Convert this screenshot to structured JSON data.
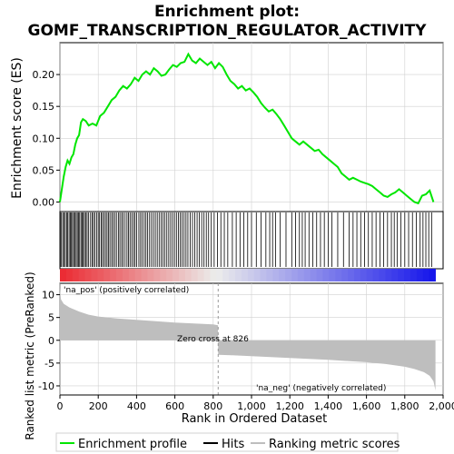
{
  "title_line1": "Enrichment plot:",
  "title_line2": "GOMF_TRANSCRIPTION_REGULATOR_ACTIVITY",
  "colors": {
    "es_line": "#00e600",
    "hits": "#000000",
    "metric_fill": "#bebebe",
    "pos_label": "#cc0000",
    "neg_label": "#0000cc",
    "grid": "#d0d0d0"
  },
  "chart_data": {
    "type": "line",
    "title": "Enrichment plot: GOMF_TRANSCRIPTION_REGULATOR_ACTIVITY",
    "xlabel": "Rank in Ordered Dataset",
    "x_ticks": [
      "0",
      "200",
      "400",
      "600",
      "800",
      "1,000",
      "1,200",
      "1,400",
      "1,600",
      "1,800",
      "2,000"
    ],
    "xlim": [
      0,
      2000
    ],
    "top_panel": {
      "ylabel": "Enrichment score (ES)",
      "y_ticks": [
        "0.00",
        "0.05",
        "0.10",
        "0.15",
        "0.20"
      ],
      "ylim": [
        -0.015,
        0.25
      ],
      "series": [
        {
          "name": "Enrichment profile",
          "x": [
            0,
            10,
            20,
            30,
            40,
            50,
            60,
            70,
            80,
            90,
            100,
            110,
            120,
            135,
            150,
            170,
            190,
            210,
            230,
            250,
            270,
            290,
            310,
            330,
            350,
            370,
            390,
            410,
            430,
            450,
            470,
            490,
            510,
            530,
            550,
            570,
            590,
            610,
            630,
            650,
            670,
            690,
            710,
            730,
            750,
            770,
            790,
            810,
            830,
            850,
            870,
            890,
            910,
            930,
            950,
            970,
            990,
            1010,
            1030,
            1050,
            1070,
            1090,
            1110,
            1130,
            1150,
            1170,
            1190,
            1210,
            1230,
            1250,
            1270,
            1290,
            1310,
            1330,
            1350,
            1370,
            1390,
            1410,
            1430,
            1450,
            1470,
            1490,
            1510,
            1530,
            1550,
            1570,
            1590,
            1610,
            1630,
            1650,
            1670,
            1690,
            1710,
            1730,
            1750,
            1770,
            1790,
            1810,
            1830,
            1850,
            1870,
            1890,
            1910,
            1930,
            1950
          ],
          "y": [
            0.0,
            0.02,
            0.04,
            0.055,
            0.065,
            0.06,
            0.07,
            0.075,
            0.09,
            0.1,
            0.105,
            0.125,
            0.13,
            0.127,
            0.12,
            0.123,
            0.12,
            0.135,
            0.14,
            0.15,
            0.16,
            0.165,
            0.175,
            0.182,
            0.178,
            0.185,
            0.195,
            0.19,
            0.2,
            0.205,
            0.2,
            0.21,
            0.205,
            0.198,
            0.2,
            0.208,
            0.215,
            0.212,
            0.218,
            0.22,
            0.232,
            0.222,
            0.218,
            0.225,
            0.22,
            0.215,
            0.22,
            0.21,
            0.218,
            0.212,
            0.2,
            0.19,
            0.185,
            0.178,
            0.182,
            0.175,
            0.178,
            0.172,
            0.165,
            0.155,
            0.148,
            0.142,
            0.145,
            0.138,
            0.13,
            0.12,
            0.11,
            0.1,
            0.095,
            0.09,
            0.095,
            0.09,
            0.085,
            0.08,
            0.082,
            0.075,
            0.07,
            0.065,
            0.06,
            0.055,
            0.045,
            0.04,
            0.035,
            0.038,
            0.035,
            0.032,
            0.03,
            0.028,
            0.025,
            0.02,
            0.015,
            0.01,
            0.008,
            0.012,
            0.015,
            0.02,
            0.015,
            0.01,
            0.005,
            0.0,
            -0.002,
            0.01,
            0.012,
            0.018,
            0.0
          ]
        }
      ]
    },
    "hits_panel": {
      "legend_label": "Hits",
      "hit_ranks": [
        2,
        8,
        15,
        22,
        28,
        35,
        41,
        48,
        55,
        60,
        66,
        72,
        78,
        85,
        91,
        97,
        103,
        110,
        116,
        122,
        128,
        135,
        142,
        150,
        160,
        168,
        175,
        183,
        192,
        200,
        207,
        215,
        222,
        230,
        238,
        246,
        253,
        261,
        270,
        278,
        286,
        295,
        305,
        313,
        322,
        330,
        340,
        350,
        358,
        366,
        375,
        384,
        392,
        401,
        412,
        421,
        430,
        440,
        449,
        458,
        468,
        478,
        488,
        498,
        508,
        518,
        528,
        538,
        548,
        558,
        568,
        578,
        588,
        598,
        608,
        618,
        628,
        638,
        648,
        658,
        668,
        680,
        692,
        704,
        716,
        728,
        740,
        752,
        764,
        776,
        790,
        805,
        822,
        840,
        858,
        876,
        900,
        920,
        940,
        960,
        980,
        1000,
        1025,
        1050,
        1075,
        1095,
        1110,
        1125,
        1150,
        1180,
        1210,
        1230,
        1250,
        1265,
        1280,
        1300,
        1320,
        1340,
        1360,
        1380,
        1400,
        1420,
        1450,
        1480,
        1510,
        1530,
        1550,
        1570,
        1590,
        1610,
        1630,
        1650,
        1670,
        1690,
        1710,
        1730,
        1745,
        1760,
        1780,
        1800,
        1820,
        1840,
        1860,
        1880,
        1895,
        1910,
        1925,
        1940
      ]
    },
    "metric_panel": {
      "ylabel": "Ranked list metric (PreRanked)",
      "y_ticks": [
        "10",
        "5",
        "0",
        "-5",
        "-10"
      ],
      "ylim": [
        -12,
        12.5
      ],
      "pos_label": "'na_pos' (positively correlated)",
      "neg_label": "'na_neg' (negatively correlated)",
      "zero_cross_label": "Zero cross at 826",
      "zero_cross": 826,
      "n_genes": 1960,
      "metric_x": [
        0,
        5,
        20,
        50,
        100,
        150,
        200,
        300,
        400,
        500,
        600,
        700,
        800,
        825,
        826,
        900,
        1000,
        1200,
        1400,
        1600,
        1700,
        1800,
        1850,
        1900,
        1930,
        1950,
        1960
      ],
      "metric_y": [
        11.5,
        9.0,
        8.0,
        7.2,
        6.3,
        5.6,
        5.2,
        4.8,
        4.5,
        4.2,
        3.9,
        3.7,
        3.5,
        3.3,
        -3.2,
        -3.3,
        -3.5,
        -3.9,
        -4.3,
        -4.8,
        -5.2,
        -5.8,
        -6.3,
        -7.0,
        -7.8,
        -9.0,
        -11.0
      ]
    },
    "legend": [
      "Enrichment profile",
      "Hits",
      "Ranking metric scores"
    ]
  }
}
